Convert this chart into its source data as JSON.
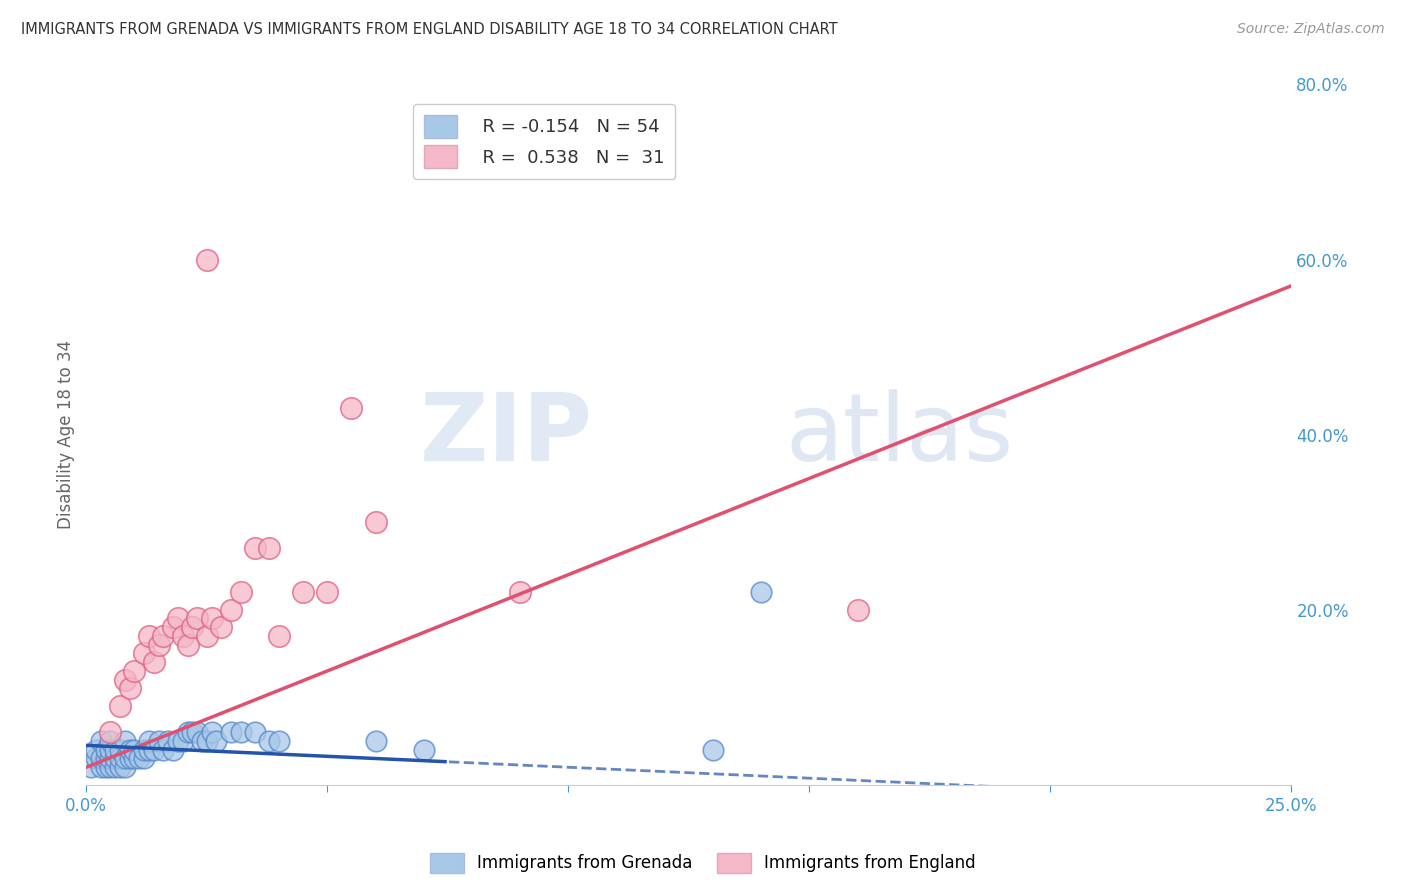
{
  "title": "IMMIGRANTS FROM GRENADA VS IMMIGRANTS FROM ENGLAND DISABILITY AGE 18 TO 34 CORRELATION CHART",
  "source": "Source: ZipAtlas.com",
  "ylabel": "Disability Age 18 to 34",
  "xlim": [
    0.0,
    0.25
  ],
  "ylim": [
    0.0,
    0.8
  ],
  "xticks": [
    0.0,
    0.05,
    0.1,
    0.15,
    0.2,
    0.25
  ],
  "yticks": [
    0.0,
    0.2,
    0.4,
    0.6,
    0.8
  ],
  "xticklabels": [
    "0.0%",
    "",
    "",
    "",
    "",
    "25.0%"
  ],
  "yticklabels": [
    "",
    "20.0%",
    "40.0%",
    "60.0%",
    "80.0%"
  ],
  "grenada_color": "#a8c8e8",
  "grenada_edge": "#5588cc",
  "england_color": "#f4b8c8",
  "england_edge": "#e06080",
  "grenada_line_color": "#2255aa",
  "england_line_color": "#e05070",
  "grenada_R": "-0.154",
  "grenada_N": "54",
  "england_R": "0.538",
  "england_N": "31",
  "legend_label_grenada": "Immigrants from Grenada",
  "legend_label_england": "Immigrants from England",
  "watermark_zip": "ZIP",
  "watermark_atlas": "atlas",
  "background_color": "#ffffff",
  "grid_color": "#cccccc",
  "title_color": "#333333",
  "tick_color": "#4499cc",
  "grenada_x": [
    0.001,
    0.002,
    0.002,
    0.003,
    0.003,
    0.003,
    0.004,
    0.004,
    0.004,
    0.005,
    0.005,
    0.005,
    0.005,
    0.006,
    0.006,
    0.006,
    0.007,
    0.007,
    0.007,
    0.008,
    0.008,
    0.008,
    0.009,
    0.009,
    0.01,
    0.01,
    0.011,
    0.012,
    0.012,
    0.013,
    0.013,
    0.014,
    0.015,
    0.016,
    0.017,
    0.018,
    0.019,
    0.02,
    0.021,
    0.022,
    0.023,
    0.024,
    0.025,
    0.026,
    0.027,
    0.03,
    0.032,
    0.035,
    0.038,
    0.04,
    0.06,
    0.07,
    0.13,
    0.14
  ],
  "grenada_y": [
    0.02,
    0.03,
    0.04,
    0.02,
    0.03,
    0.05,
    0.02,
    0.03,
    0.04,
    0.02,
    0.03,
    0.04,
    0.05,
    0.02,
    0.03,
    0.04,
    0.02,
    0.03,
    0.04,
    0.02,
    0.03,
    0.05,
    0.03,
    0.04,
    0.03,
    0.04,
    0.03,
    0.03,
    0.04,
    0.04,
    0.05,
    0.04,
    0.05,
    0.04,
    0.05,
    0.04,
    0.05,
    0.05,
    0.06,
    0.06,
    0.06,
    0.05,
    0.05,
    0.06,
    0.05,
    0.06,
    0.06,
    0.06,
    0.05,
    0.05,
    0.05,
    0.04,
    0.04,
    0.22
  ],
  "england_x": [
    0.005,
    0.007,
    0.008,
    0.009,
    0.01,
    0.012,
    0.013,
    0.014,
    0.015,
    0.016,
    0.018,
    0.019,
    0.02,
    0.021,
    0.022,
    0.023,
    0.025,
    0.026,
    0.028,
    0.03,
    0.032,
    0.035,
    0.038,
    0.04,
    0.045,
    0.05,
    0.055,
    0.06,
    0.09,
    0.16,
    0.025
  ],
  "england_y": [
    0.06,
    0.09,
    0.12,
    0.11,
    0.13,
    0.15,
    0.17,
    0.14,
    0.16,
    0.17,
    0.18,
    0.19,
    0.17,
    0.16,
    0.18,
    0.19,
    0.17,
    0.19,
    0.18,
    0.2,
    0.22,
    0.27,
    0.27,
    0.17,
    0.22,
    0.22,
    0.43,
    0.3,
    0.22,
    0.2,
    0.6
  ],
  "england_line_intercept": 0.02,
  "england_line_slope": 2.2,
  "grenada_line_intercept": 0.045,
  "grenada_line_slope": -0.25
}
